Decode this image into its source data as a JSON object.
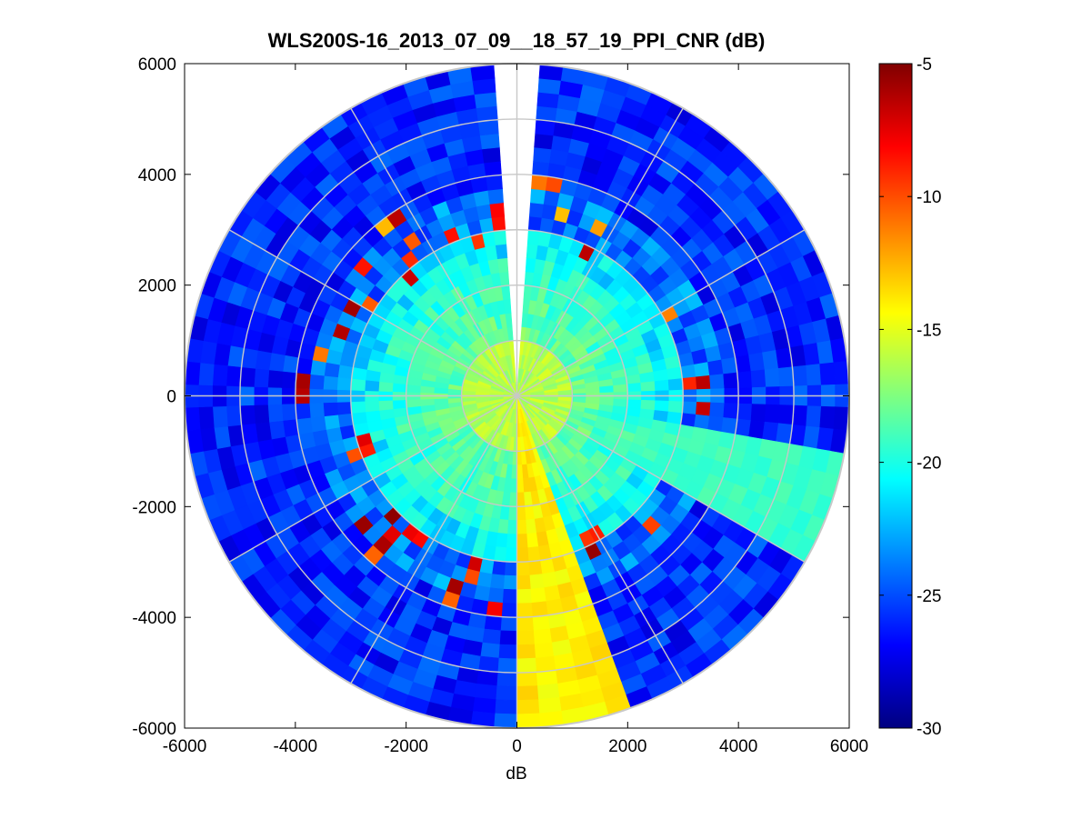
{
  "chart_data": {
    "type": "heatmap",
    "subtype": "polar-ppi",
    "title": "WLS200S-16_2013_07_09__18_57_19_PPI_CNR (dB)",
    "xlabel": "dB",
    "ylabel": "",
    "xlim": [
      -6000,
      6000
    ],
    "ylim": [
      -6000,
      6000
    ],
    "xticks": [
      "-6000",
      "-4000",
      "-2000",
      "0",
      "2000",
      "4000",
      "6000"
    ],
    "yticks": [
      "6000",
      "4000",
      "2000",
      "0",
      "-2000",
      "-4000",
      "-6000"
    ],
    "max_range": 6000,
    "range_rings": [
      1000,
      2000,
      3000,
      4000,
      5000,
      6000
    ],
    "radial_spokes_deg": [
      0,
      30,
      60,
      90,
      120,
      150,
      180,
      210,
      240,
      270,
      300,
      330
    ],
    "missing_sector_deg": [
      -4,
      4
    ],
    "colorbar": {
      "label": "dB",
      "min": -30,
      "max": -5,
      "ticks": [
        "-5",
        "-10",
        "-15",
        "-20",
        "-25",
        "-30"
      ],
      "colormap": "jet"
    },
    "features": [
      {
        "name": "near-field high CNR",
        "range_m": [
          0,
          2500
        ],
        "cnr_db": -17
      },
      {
        "name": "far-field low CNR",
        "range_m": [
          3500,
          6000
        ],
        "cnr_db": -26
      },
      {
        "name": "hard-target ring",
        "range_m": [
          3000,
          3800
        ],
        "cnr_db": -6
      },
      {
        "name": "south beam",
        "azimuth_deg": [
          180,
          162
        ],
        "cnr_db": -14
      },
      {
        "name": "east-southeast beam",
        "azimuth_deg": [
          102,
          122
        ],
        "cnr_db": -19
      }
    ]
  }
}
